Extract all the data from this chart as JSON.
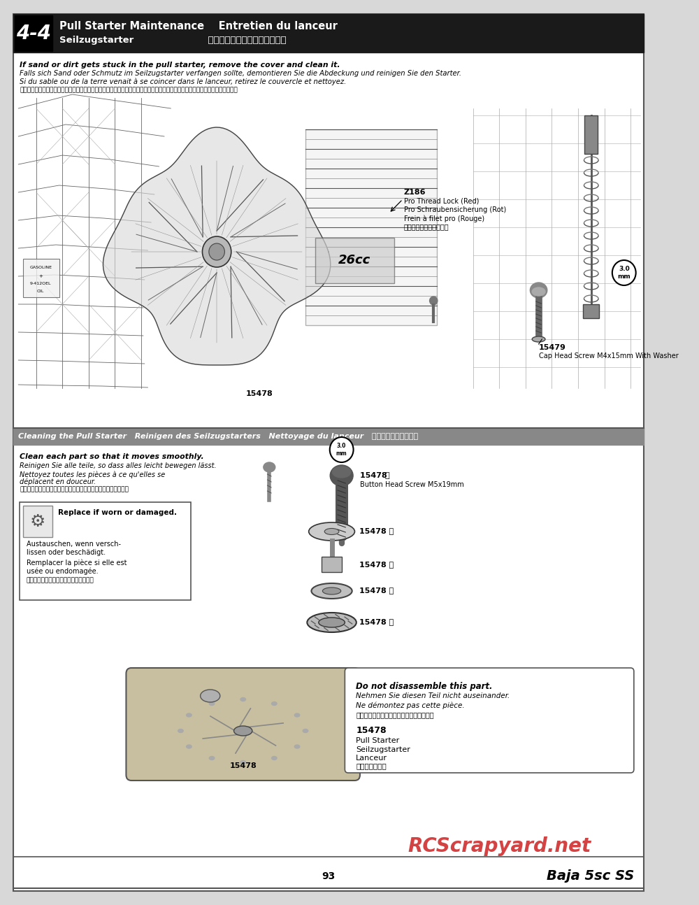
{
  "page_bg": "#d8d8d8",
  "content_bg": "#ffffff",
  "page_num": "93",
  "brand_text": "Baja 5sc SS",
  "watermark": "RCScrapyard.net",
  "section_num": "4-4",
  "section_title_en": "Pull Starter Maintenance",
  "section_title_fr": "Entretien du lanceur",
  "section_title_de": "Seilzugstarter",
  "section_title_jp": "プルスターターのメンテナンス",
  "intro_line1_en": "If sand or dirt gets stuck in the pull starter, remove the cover and clean it.",
  "intro_line2_de": "Falls sich Sand oder Schmutz im Seilzugstarter verfangen sollte, demontieren Sie die Abdeckung und reinigen Sie den Starter.",
  "intro_line3_fr": "Si du sable ou de la terre venait à se coincer dans le lanceur, retirez le couvercle et nettoyez.",
  "intro_line4_jp": "プルスターターに砂が詰まると動作しなくなり、エンジン起動が出来なくなります。走行時はプルスターターを分解済給します。",
  "part_z186": "Z186",
  "part_z186_desc1": "Pro Thread Lock (Red)",
  "part_z186_desc2": "Pro Schraubensicherung (Rot)",
  "part_z186_desc3": "Frein à filet pro (Rouge)",
  "part_z186_desc4": "ネジロック剤（レッド）",
  "part_15479": "15479",
  "part_15479_desc": "Cap Head Screw M4x15mm With Washer",
  "part_15479_size": "3.0\nmm",
  "part_15478_main": "15478",
  "section2_title_en": "Cleaning the Pull Starter",
  "section2_title_de": "Reinigen des Seilzugstarters",
  "section2_title_fr": "Nettoyage du lanceur",
  "section2_title_jp": "プルスターターの清潣",
  "clean_line1_en": "Clean each part so that it moves smoothly.",
  "clean_line2_de": "Reinigen Sie alle teile, so dass alles leicht bewegen lässt.",
  "clean_line3_fr": "Nettoyez toutes les pièces à ce qu'elles se",
  "clean_line3b_fr": "déplacent en douceur.",
  "clean_line4_jp": "自分パーツがスムーズに動くように汚れを取り除いてください。",
  "replace_line1": "Replace if worn or damaged.",
  "replace_line2": "Austauschen, wenn versch-",
  "replace_line3": "lissen oder beschädigt.",
  "replace_line4": "Remplacer la pièce si elle est",
  "replace_line5": "usée ou endomagée.",
  "replace_line6": "損耗、破損している部品は交換します。",
  "part_15478a": "15478",
  "part_15478a_circle": "Ⓐ",
  "part_15478a_desc": "Button Head Screw M5x19mm",
  "part_15478b": "15478",
  "part_15478b_circle": "Ⓑ",
  "part_15478c": "15478",
  "part_15478c_circle": "Ⓒ",
  "part_15478d": "15478",
  "part_15478d_circle": "Ⓓ",
  "part_15478e": "15478",
  "part_15478e_circle": "Ⓔ",
  "size_3mm": "3.0\nmm",
  "no_disassemble1": "Do not disassemble this part.",
  "no_disassemble2": "Nehmen Sie diesen Teil nicht auseinander.",
  "no_disassemble3": "Ne démontez pas cette pièce.",
  "no_disassemble4": "スターター本体は分解しないでください。",
  "part_15478_final": "15478",
  "part_15478_name1": "Pull Starter",
  "part_15478_name2": "Seilzugstarter",
  "part_15478_name3": "Lanceur",
  "part_15478_name4": "プルスターター",
  "header_bg": "#1a1a1a",
  "sec2_bar_bg": "#888888",
  "diagram_bg": "#f0f0f0"
}
